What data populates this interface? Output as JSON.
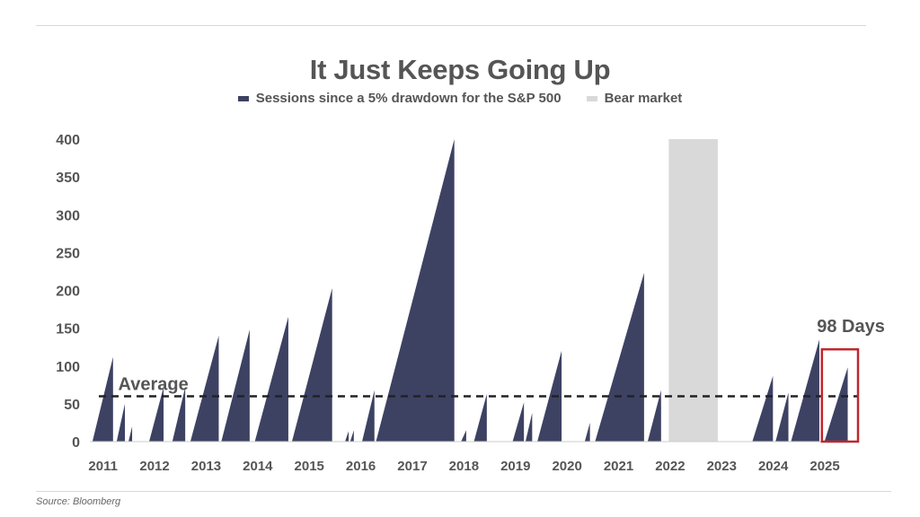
{
  "source": "Source: Bloomberg",
  "colors": {
    "series": "#3d4263",
    "bear_market": "#d9d9d9",
    "average_line": "#222222",
    "highlight_box": "#c0272d",
    "text": "#555555"
  },
  "chart_data": {
    "type": "area",
    "title": "It Just Keeps Going Up",
    "legend": [
      {
        "label": "Sessions since a 5% drawdown for the S&P 500",
        "color": "#3d4263"
      },
      {
        "label": "Bear market",
        "color": "#d9d9d9"
      }
    ],
    "legend_position": "top-center",
    "x_range": [
      2011.0,
      2025.9
    ],
    "xticks": [
      2011,
      2012,
      2013,
      2014,
      2015,
      2016,
      2017,
      2018,
      2019,
      2020,
      2021,
      2022,
      2023,
      2024,
      2025
    ],
    "ylim": [
      0,
      400
    ],
    "yticks": [
      0,
      50,
      100,
      150,
      200,
      250,
      300,
      350,
      400
    ],
    "grid": false,
    "average": {
      "label": "Average",
      "value": 60
    },
    "series": [
      {
        "name": "Sessions since a 5% drawdown for the S&P 500",
        "runs": [
          {
            "start": 2011.05,
            "end": 2011.45,
            "peak": 112
          },
          {
            "start": 2011.52,
            "end": 2011.68,
            "peak": 50
          },
          {
            "start": 2011.75,
            "end": 2011.82,
            "peak": 20
          },
          {
            "start": 2012.15,
            "end": 2012.43,
            "peak": 72
          },
          {
            "start": 2012.6,
            "end": 2012.85,
            "peak": 72
          },
          {
            "start": 2012.95,
            "end": 2013.5,
            "peak": 140
          },
          {
            "start": 2013.55,
            "end": 2014.1,
            "peak": 148
          },
          {
            "start": 2014.2,
            "end": 2014.85,
            "peak": 165
          },
          {
            "start": 2014.92,
            "end": 2015.7,
            "peak": 203
          },
          {
            "start": 2015.95,
            "end": 2016.02,
            "peak": 14
          },
          {
            "start": 2016.05,
            "end": 2016.12,
            "peak": 15
          },
          {
            "start": 2016.28,
            "end": 2016.52,
            "peak": 68
          },
          {
            "start": 2016.55,
            "end": 2018.07,
            "peak": 400
          },
          {
            "start": 2018.2,
            "end": 2018.3,
            "peak": 15
          },
          {
            "start": 2018.45,
            "end": 2018.7,
            "peak": 63
          },
          {
            "start": 2019.2,
            "end": 2019.42,
            "peak": 52
          },
          {
            "start": 2019.45,
            "end": 2019.58,
            "peak": 38
          },
          {
            "start": 2019.68,
            "end": 2020.15,
            "peak": 120
          },
          {
            "start": 2020.6,
            "end": 2020.7,
            "peak": 25
          },
          {
            "start": 2020.8,
            "end": 2021.75,
            "peak": 223
          },
          {
            "start": 2021.82,
            "end": 2022.08,
            "peak": 68
          },
          {
            "start": 2023.85,
            "end": 2024.25,
            "peak": 87
          },
          {
            "start": 2024.3,
            "end": 2024.55,
            "peak": 65
          },
          {
            "start": 2024.6,
            "end": 2025.15,
            "peak": 135
          },
          {
            "start": 2025.25,
            "end": 2025.7,
            "peak": 98
          }
        ]
      }
    ],
    "bear_market": {
      "start": 2022.23,
      "end": 2023.18,
      "value": 400
    },
    "highlight": {
      "start": 2025.2,
      "end": 2025.9,
      "value": 122
    },
    "annotation": {
      "text": "98 Days",
      "x": 2025.5,
      "y": 145
    }
  }
}
